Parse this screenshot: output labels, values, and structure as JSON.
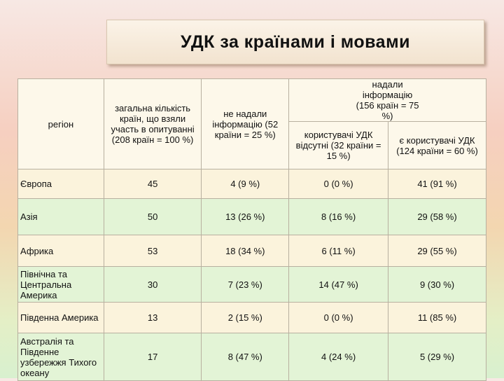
{
  "title": "УДК за країнами і мовами",
  "table": {
    "header": {
      "region": "регіон",
      "total": "загальна кількість країн, що взяли участь в опитуванні (208 країн = 100 %)",
      "not_provided": "не надали інформацію (52 країни = 25 %)",
      "provided": "надали інформацію (156 країн = 75 %)",
      "absent": "користувачі УДК відсутні (32 країни = 15 %)",
      "users": "є користувачі УДК (124 країни = 60 %)"
    },
    "rows": [
      [
        "Європа",
        45,
        "4 (9 %)",
        "0 (0 %)",
        "41 (91 %)"
      ],
      [
        "Азія",
        50,
        "13 (26 %)",
        "8 (16 %)",
        "29 (58 %)"
      ],
      [
        "Африка",
        53,
        "18 (34 %)",
        "6 (11 %)",
        "29 (55 %)"
      ],
      [
        "Північна та Центральна Америка",
        30,
        "7 (23 %)",
        "14 (47 %)",
        "9 (30 %)"
      ],
      [
        "Південна Америка",
        13,
        "2 (15 %)",
        "0 (0 %)",
        "11 (85 %)"
      ],
      [
        "Австралія та Південне узбережжя Тихого океану",
        17,
        "8 (47 %)",
        "4 (24 %)",
        "5 (29 %)"
      ]
    ]
  }
}
